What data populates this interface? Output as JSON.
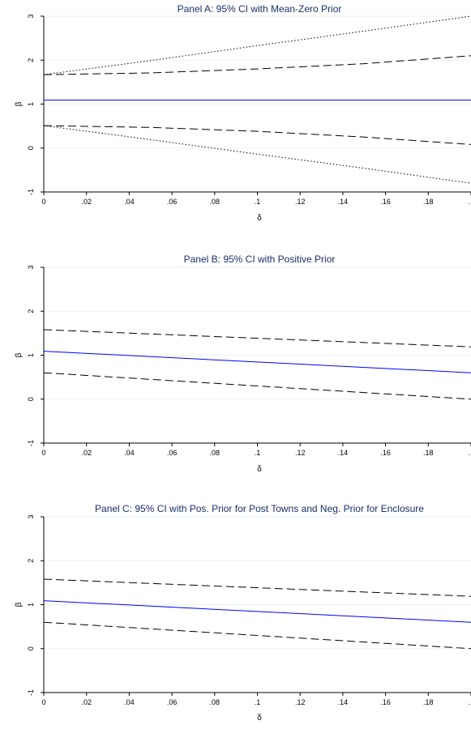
{
  "chart_data": [
    {
      "type": "line",
      "title": "Panel A: 95% CI with Mean-Zero Prior",
      "xlabel": "δ",
      "ylabel": "β",
      "xlim": [
        0,
        0.2
      ],
      "ylim": [
        -1,
        3
      ],
      "x_tick_labels": [
        "0",
        ".02",
        ".04",
        ".06",
        ".08",
        ".1",
        ".12",
        ".14",
        ".16",
        ".18",
        "."
      ],
      "y_tick_labels": [
        "-1",
        "0",
        "1",
        "2",
        "3"
      ],
      "grid": true,
      "x": [
        0,
        0.05,
        0.1,
        0.15,
        0.2
      ],
      "series": [
        {
          "style": "solid",
          "color": "#0000ff",
          "values": [
            1.09,
            1.09,
            1.09,
            1.09,
            1.09
          ]
        },
        {
          "style": "dashed",
          "color": "#000000",
          "values": [
            1.67,
            1.71,
            1.8,
            1.92,
            2.1
          ]
        },
        {
          "style": "dashed",
          "color": "#000000",
          "values": [
            0.51,
            0.47,
            0.38,
            0.25,
            0.08
          ]
        },
        {
          "style": "dotted",
          "color": "#000000",
          "values": [
            1.67,
            1.99,
            2.33,
            2.66,
            3.0
          ]
        },
        {
          "style": "dotted",
          "color": "#000000",
          "values": [
            0.51,
            0.19,
            -0.14,
            -0.46,
            -0.8
          ]
        }
      ]
    },
    {
      "type": "line",
      "title": "Panel B: 95% CI with Positive Prior",
      "xlabel": "δ",
      "ylabel": "β",
      "xlim": [
        0,
        0.2
      ],
      "ylim": [
        -1,
        3
      ],
      "x_tick_labels": [
        "0",
        ".02",
        ".04",
        ".06",
        ".08",
        ".1",
        ".12",
        ".14",
        ".16",
        ".18",
        "."
      ],
      "y_tick_labels": [
        "-1",
        "0",
        "1",
        "2",
        "3"
      ],
      "grid": true,
      "x": [
        0,
        0.2
      ],
      "series": [
        {
          "style": "solid",
          "color": "#0000ff",
          "values": [
            1.09,
            0.6
          ]
        },
        {
          "style": "dashed",
          "color": "#000000",
          "values": [
            1.58,
            1.19
          ]
        },
        {
          "style": "dashed",
          "color": "#000000",
          "values": [
            0.6,
            0.0
          ]
        }
      ]
    },
    {
      "type": "line",
      "title": "Panel C: 95% CI with Pos. Prior for Post Towns and Neg. Prior for Enclosure",
      "xlabel": "δ",
      "ylabel": "β",
      "xlim": [
        0,
        0.2
      ],
      "ylim": [
        -1,
        3
      ],
      "x_tick_labels": [
        "0",
        ".02",
        ".04",
        ".06",
        ".08",
        ".1",
        ".12",
        ".14",
        ".16",
        ".18",
        "."
      ],
      "y_tick_labels": [
        "-1",
        "0",
        "1",
        "2",
        "3"
      ],
      "grid": true,
      "x": [
        0,
        0.2
      ],
      "series": [
        {
          "style": "solid",
          "color": "#0000ff",
          "values": [
            1.09,
            0.6
          ]
        },
        {
          "style": "dashed",
          "color": "#000000",
          "values": [
            1.58,
            1.19
          ]
        },
        {
          "style": "dashed",
          "color": "#000000",
          "values": [
            0.6,
            0.0
          ]
        }
      ]
    }
  ]
}
